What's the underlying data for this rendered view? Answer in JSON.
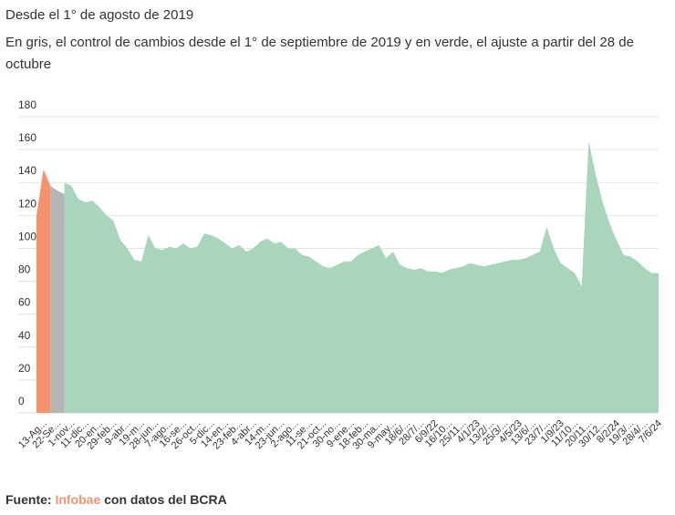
{
  "chart_data": {
    "type": "area",
    "title": "Desde el 1° de agosto de 2019",
    "subtitle": "En gris, el control de cambios desde el 1° de septiembre de 2019 y en verde, el ajuste a partir del 28 de octubre",
    "categories": [
      null,
      "13-Ag...",
      null,
      "22-Se...",
      null,
      "1-nov...",
      null,
      "11-dic...",
      null,
      "20-en...",
      null,
      "29-feb...",
      null,
      "9-abr...",
      null,
      "19-m...",
      null,
      "28-jun...",
      null,
      "7-ago...",
      null,
      "16-se...",
      null,
      "26-oct...",
      null,
      "5-dic...",
      null,
      "14-en...",
      null,
      "23-feb...",
      null,
      "4-abr...",
      null,
      "14-m...",
      null,
      "23-jun...",
      null,
      "2-ago...",
      null,
      "11-se...",
      null,
      "21-oct...",
      null,
      "30-no...",
      null,
      "9-ene...",
      null,
      "18-feb...",
      null,
      "30-ma...",
      null,
      "9-may...",
      null,
      "18/6/...",
      null,
      "28/7/...",
      null,
      "6/9/22",
      null,
      "16/10...",
      null,
      "25/11...",
      null,
      "4/1/23",
      null,
      "13/2/...",
      null,
      "25/3/...",
      null,
      "4/5/23",
      null,
      "13/6/...",
      null,
      "23/7/...",
      null,
      "1/9/23",
      null,
      "11/10...",
      null,
      "20/11...",
      null,
      "30/12...",
      null,
      "8/2/24",
      null,
      "19/3/...",
      null,
      "28/4/...",
      null,
      "7/6/24"
    ],
    "series": [
      {
        "color": "#f4926e",
        "values": [
          120,
          148,
          138,
          null,
          null,
          null,
          null,
          null,
          null,
          null,
          null,
          null,
          null,
          null,
          null,
          null,
          null,
          null,
          null,
          null,
          null,
          null,
          null,
          null,
          null,
          null,
          null,
          null,
          null,
          null,
          null,
          null,
          null,
          null,
          null,
          null,
          null,
          null,
          null,
          null,
          null,
          null,
          null,
          null,
          null,
          null,
          null,
          null,
          null,
          null,
          null,
          null,
          null,
          null,
          null,
          null,
          null,
          null,
          null,
          null,
          null,
          null,
          null,
          null,
          null,
          null,
          null,
          null,
          null,
          null,
          null,
          null,
          null,
          null,
          null,
          null,
          null,
          null,
          null,
          null,
          null,
          null,
          null,
          null,
          null,
          null,
          null,
          null,
          null,
          null
        ]
      },
      {
        "color": "#b5b5b5",
        "values": [
          null,
          null,
          138,
          135,
          133,
          null,
          null,
          null,
          null,
          null,
          null,
          null,
          null,
          null,
          null,
          null,
          null,
          null,
          null,
          null,
          null,
          null,
          null,
          null,
          null,
          null,
          null,
          null,
          null,
          null,
          null,
          null,
          null,
          null,
          null,
          null,
          null,
          null,
          null,
          null,
          null,
          null,
          null,
          null,
          null,
          null,
          null,
          null,
          null,
          null,
          null,
          null,
          null,
          null,
          null,
          null,
          null,
          null,
          null,
          null,
          null,
          null,
          null,
          null,
          null,
          null,
          null,
          null,
          null,
          null,
          null,
          null,
          null,
          null,
          null,
          null,
          null,
          null,
          null,
          null,
          null,
          null,
          null,
          null,
          null,
          null,
          null,
          null,
          null,
          null
        ]
      },
      {
        "color": "#a9d5bd",
        "values": [
          null,
          null,
          null,
          null,
          140,
          138,
          130,
          128,
          129,
          125,
          120,
          117,
          105,
          100,
          93,
          92,
          108,
          100,
          99,
          101,
          100,
          103,
          100,
          101,
          109,
          108,
          106,
          103,
          100,
          102,
          98,
          100,
          104,
          106,
          103,
          104,
          100,
          100,
          96,
          95,
          92,
          89,
          88,
          90,
          92,
          92,
          96,
          98,
          100,
          102,
          94,
          98,
          90,
          88,
          87,
          88,
          86,
          86,
          85,
          87,
          88,
          89,
          91,
          90,
          89,
          90,
          91,
          92,
          93,
          93,
          94,
          96,
          98,
          113,
          100,
          91,
          88,
          85,
          77,
          165,
          145,
          128,
          115,
          105,
          96,
          95,
          92,
          88,
          85,
          85
        ]
      }
    ],
    "ylim": [
      0,
      180
    ],
    "yticks": [
      0,
      20,
      40,
      60,
      80,
      100,
      120,
      140,
      160,
      180
    ],
    "grid": true
  },
  "footer": {
    "prefix": "Fuente:",
    "source": "Infobae",
    "suffix": "con datos del BCRA"
  }
}
